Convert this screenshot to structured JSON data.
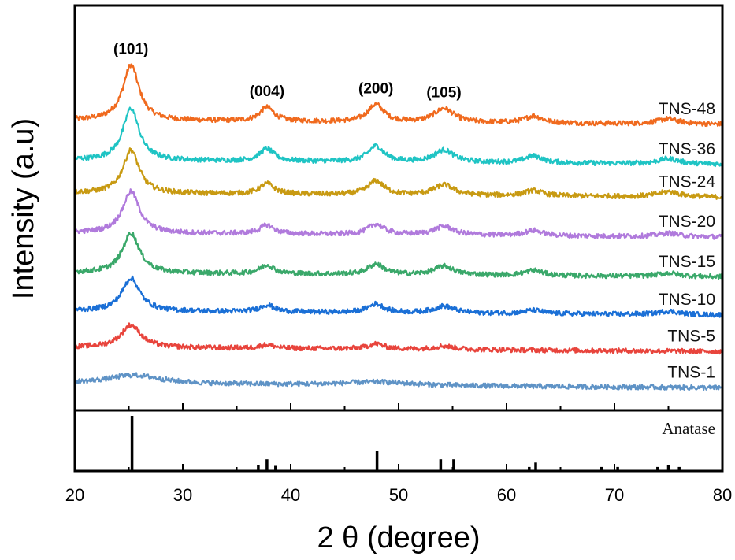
{
  "chart_data": {
    "type": "line",
    "xlabel": "2 θ (degree)",
    "ylabel": "Intensity (a.u)",
    "xlim": [
      20,
      80
    ],
    "xticks": [
      20,
      30,
      40,
      50,
      60,
      70,
      80
    ],
    "grid": false,
    "series": [
      {
        "name": "TNS-48",
        "color": "#f06a1e",
        "baseline": 16.0,
        "peaks": [
          {
            "x": 25.2,
            "h": 3.2,
            "w": 0.9
          },
          {
            "x": 37.8,
            "h": 0.8,
            "w": 0.8
          },
          {
            "x": 47.9,
            "h": 1.0,
            "w": 0.9
          },
          {
            "x": 54.2,
            "h": 0.8,
            "w": 1.1
          },
          {
            "x": 62.5,
            "h": 0.4,
            "w": 1.0
          },
          {
            "x": 75.0,
            "h": 0.3,
            "w": 1.2
          }
        ]
      },
      {
        "name": "TNS-36",
        "color": "#1fc4c4",
        "baseline": 13.7,
        "peaks": [
          {
            "x": 25.2,
            "h": 3.0,
            "w": 0.9
          },
          {
            "x": 37.8,
            "h": 0.7,
            "w": 0.8
          },
          {
            "x": 47.9,
            "h": 0.9,
            "w": 0.9
          },
          {
            "x": 54.2,
            "h": 0.7,
            "w": 1.1
          },
          {
            "x": 62.5,
            "h": 0.4,
            "w": 1.0
          },
          {
            "x": 75.0,
            "h": 0.3,
            "w": 1.2
          }
        ]
      },
      {
        "name": "TNS-24",
        "color": "#c89a12",
        "baseline": 11.8,
        "peaks": [
          {
            "x": 25.2,
            "h": 2.5,
            "w": 0.9
          },
          {
            "x": 37.8,
            "h": 0.6,
            "w": 0.8
          },
          {
            "x": 47.9,
            "h": 0.8,
            "w": 0.9
          },
          {
            "x": 54.2,
            "h": 0.6,
            "w": 1.1
          },
          {
            "x": 62.5,
            "h": 0.3,
            "w": 1.0
          },
          {
            "x": 75.0,
            "h": 0.3,
            "w": 1.2
          }
        ]
      },
      {
        "name": "TNS-20",
        "color": "#b07adc",
        "baseline": 9.5,
        "peaks": [
          {
            "x": 25.2,
            "h": 2.4,
            "w": 0.95
          },
          {
            "x": 37.8,
            "h": 0.5,
            "w": 0.8
          },
          {
            "x": 47.9,
            "h": 0.6,
            "w": 0.9
          },
          {
            "x": 54.2,
            "h": 0.5,
            "w": 1.1
          },
          {
            "x": 62.5,
            "h": 0.3,
            "w": 1.0
          },
          {
            "x": 75.0,
            "h": 0.2,
            "w": 1.2
          }
        ]
      },
      {
        "name": "TNS-15",
        "color": "#3aa86a",
        "baseline": 7.2,
        "peaks": [
          {
            "x": 25.2,
            "h": 2.3,
            "w": 0.95
          },
          {
            "x": 37.8,
            "h": 0.5,
            "w": 0.8
          },
          {
            "x": 47.9,
            "h": 0.6,
            "w": 0.9
          },
          {
            "x": 54.2,
            "h": 0.5,
            "w": 1.1
          },
          {
            "x": 62.5,
            "h": 0.3,
            "w": 1.0
          },
          {
            "x": 75.0,
            "h": 0.2,
            "w": 1.2
          }
        ]
      },
      {
        "name": "TNS-10",
        "color": "#1a6fd6",
        "baseline": 5.0,
        "peaks": [
          {
            "x": 25.2,
            "h": 1.9,
            "w": 1.0
          },
          {
            "x": 37.8,
            "h": 0.4,
            "w": 0.8
          },
          {
            "x": 47.9,
            "h": 0.5,
            "w": 0.9
          },
          {
            "x": 54.2,
            "h": 0.4,
            "w": 1.1
          },
          {
            "x": 62.5,
            "h": 0.2,
            "w": 1.0
          },
          {
            "x": 75.0,
            "h": 0.2,
            "w": 1.2
          }
        ]
      },
      {
        "name": "TNS-5",
        "color": "#e8443c",
        "baseline": 2.9,
        "peaks": [
          {
            "x": 25.2,
            "h": 1.3,
            "w": 1.1
          },
          {
            "x": 37.8,
            "h": 0.2,
            "w": 0.8
          },
          {
            "x": 47.9,
            "h": 0.3,
            "w": 0.9
          },
          {
            "x": 54.2,
            "h": 0.2,
            "w": 1.1
          }
        ]
      },
      {
        "name": "TNS-1",
        "color": "#5f93c6",
        "baseline": 0.8,
        "peaks": [
          {
            "x": 25.5,
            "h": 0.5,
            "w": 3.0
          },
          {
            "x": 48.0,
            "h": 0.2,
            "w": 4.0
          }
        ]
      }
    ],
    "peak_labels": [
      {
        "text": "(101)",
        "x": 25.2
      },
      {
        "text": "(004)",
        "x": 37.8
      },
      {
        "text": "(200)",
        "x": 47.9
      },
      {
        "text": "(105)",
        "x": 54.2
      }
    ],
    "reference": {
      "name": "Anatase",
      "lines": [
        {
          "x": 25.3,
          "h": 100
        },
        {
          "x": 37.0,
          "h": 10
        },
        {
          "x": 37.8,
          "h": 20
        },
        {
          "x": 38.6,
          "h": 8
        },
        {
          "x": 48.0,
          "h": 35
        },
        {
          "x": 53.9,
          "h": 20
        },
        {
          "x": 55.1,
          "h": 20
        },
        {
          "x": 62.1,
          "h": 6
        },
        {
          "x": 62.7,
          "h": 14
        },
        {
          "x": 68.8,
          "h": 6
        },
        {
          "x": 70.3,
          "h": 6
        },
        {
          "x": 74.0,
          "h": 6
        },
        {
          "x": 75.0,
          "h": 10
        },
        {
          "x": 76.0,
          "h": 6
        }
      ]
    }
  }
}
